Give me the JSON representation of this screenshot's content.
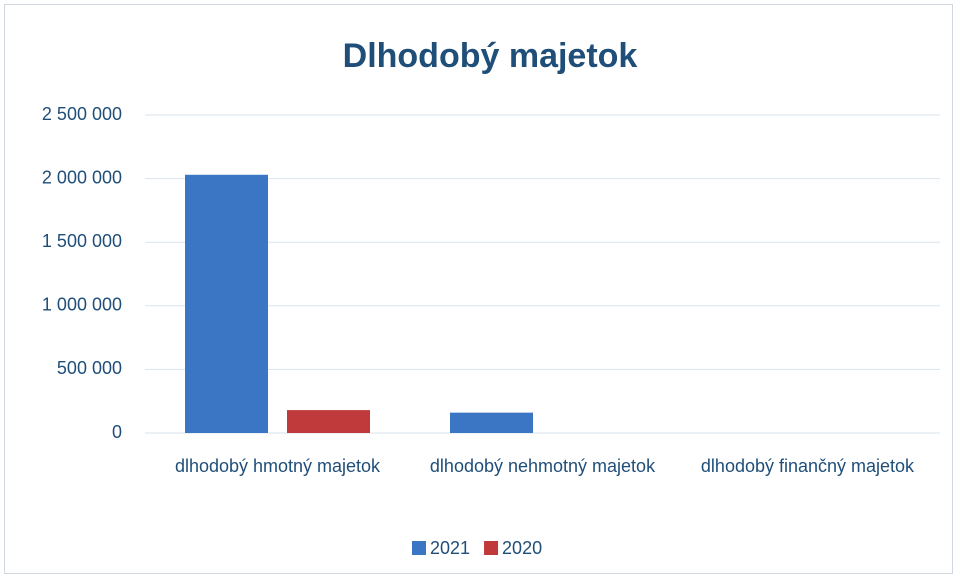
{
  "chart_data": {
    "type": "bar",
    "title": "Dlhodobý majetok",
    "categories": [
      "dlhodobý hmotný majetok",
      "dlhodobý nehmotný majetok",
      "dlhodobý finančný majetok"
    ],
    "series": [
      {
        "name": "2021",
        "color": "#3a76c4",
        "values": [
          2030000,
          160000,
          0
        ]
      },
      {
        "name": "2020",
        "color": "#c0393b",
        "values": [
          180000,
          0,
          0
        ]
      }
    ],
    "ylim": [
      0,
      2500000
    ],
    "yticks": [
      0,
      {
        "value": 500000,
        "label": "500 000"
      },
      {
        "value": 1000000,
        "label": "1 000 000"
      },
      {
        "value": 1500000,
        "label": "1 500 000"
      },
      {
        "value": 2000000,
        "label": "2 000 000"
      },
      {
        "value": 2500000,
        "label": "2 500 000"
      }
    ],
    "grid": true,
    "legend": "bottom"
  }
}
